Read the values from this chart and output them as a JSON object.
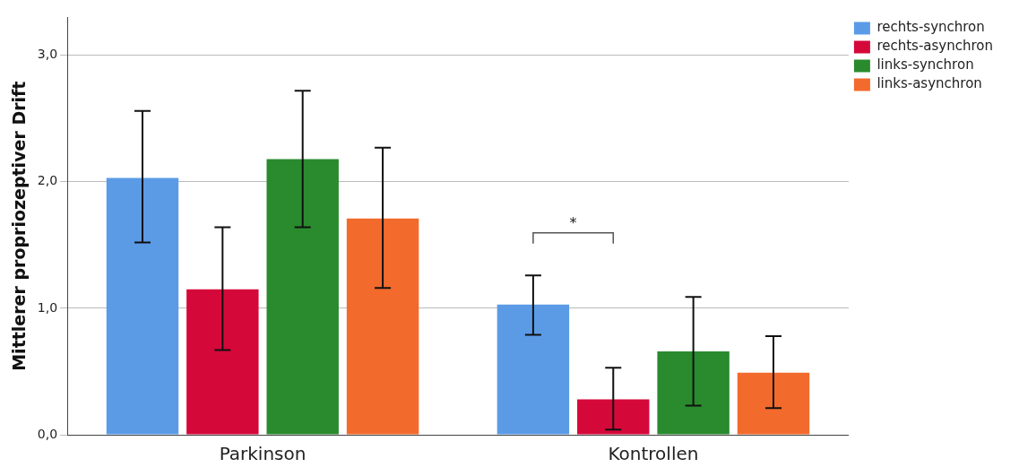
{
  "chart_data": {
    "type": "bar",
    "ylabel": "Mittlerer propriozeptiver Drift",
    "categories": [
      "Parkinson",
      "Kontrollen"
    ],
    "series": [
      {
        "name": "rechts-synchron",
        "color": "#5b9be6",
        "values": [
          2.03,
          1.03
        ],
        "errors": [
          [
            1.52,
            2.56
          ],
          [
            0.79,
            1.26
          ]
        ]
      },
      {
        "name": "rechts-asynchron",
        "color": "#d5083a",
        "values": [
          1.15,
          0.28
        ],
        "errors": [
          [
            0.67,
            1.64
          ],
          [
            0.04,
            0.53
          ]
        ]
      },
      {
        "name": "links-synchron",
        "color": "#2a8a2e",
        "values": [
          2.18,
          0.66
        ],
        "errors": [
          [
            1.64,
            2.72
          ],
          [
            0.23,
            1.09
          ]
        ]
      },
      {
        "name": "links-asynchron",
        "color": "#f26a2c",
        "values": [
          1.71,
          0.49
        ],
        "errors": [
          [
            1.16,
            2.27
          ],
          [
            0.21,
            0.78
          ]
        ]
      }
    ],
    "ylim": [
      0,
      3.3
    ],
    "yticks": [
      {
        "value": 0,
        "label": "0,0"
      },
      {
        "value": 1,
        "label": "1,0"
      },
      {
        "value": 2,
        "label": "2,0"
      },
      {
        "value": 3,
        "label": "3,0"
      }
    ],
    "grid": "y",
    "legend": "top right",
    "annotations": [
      "*"
    ]
  }
}
